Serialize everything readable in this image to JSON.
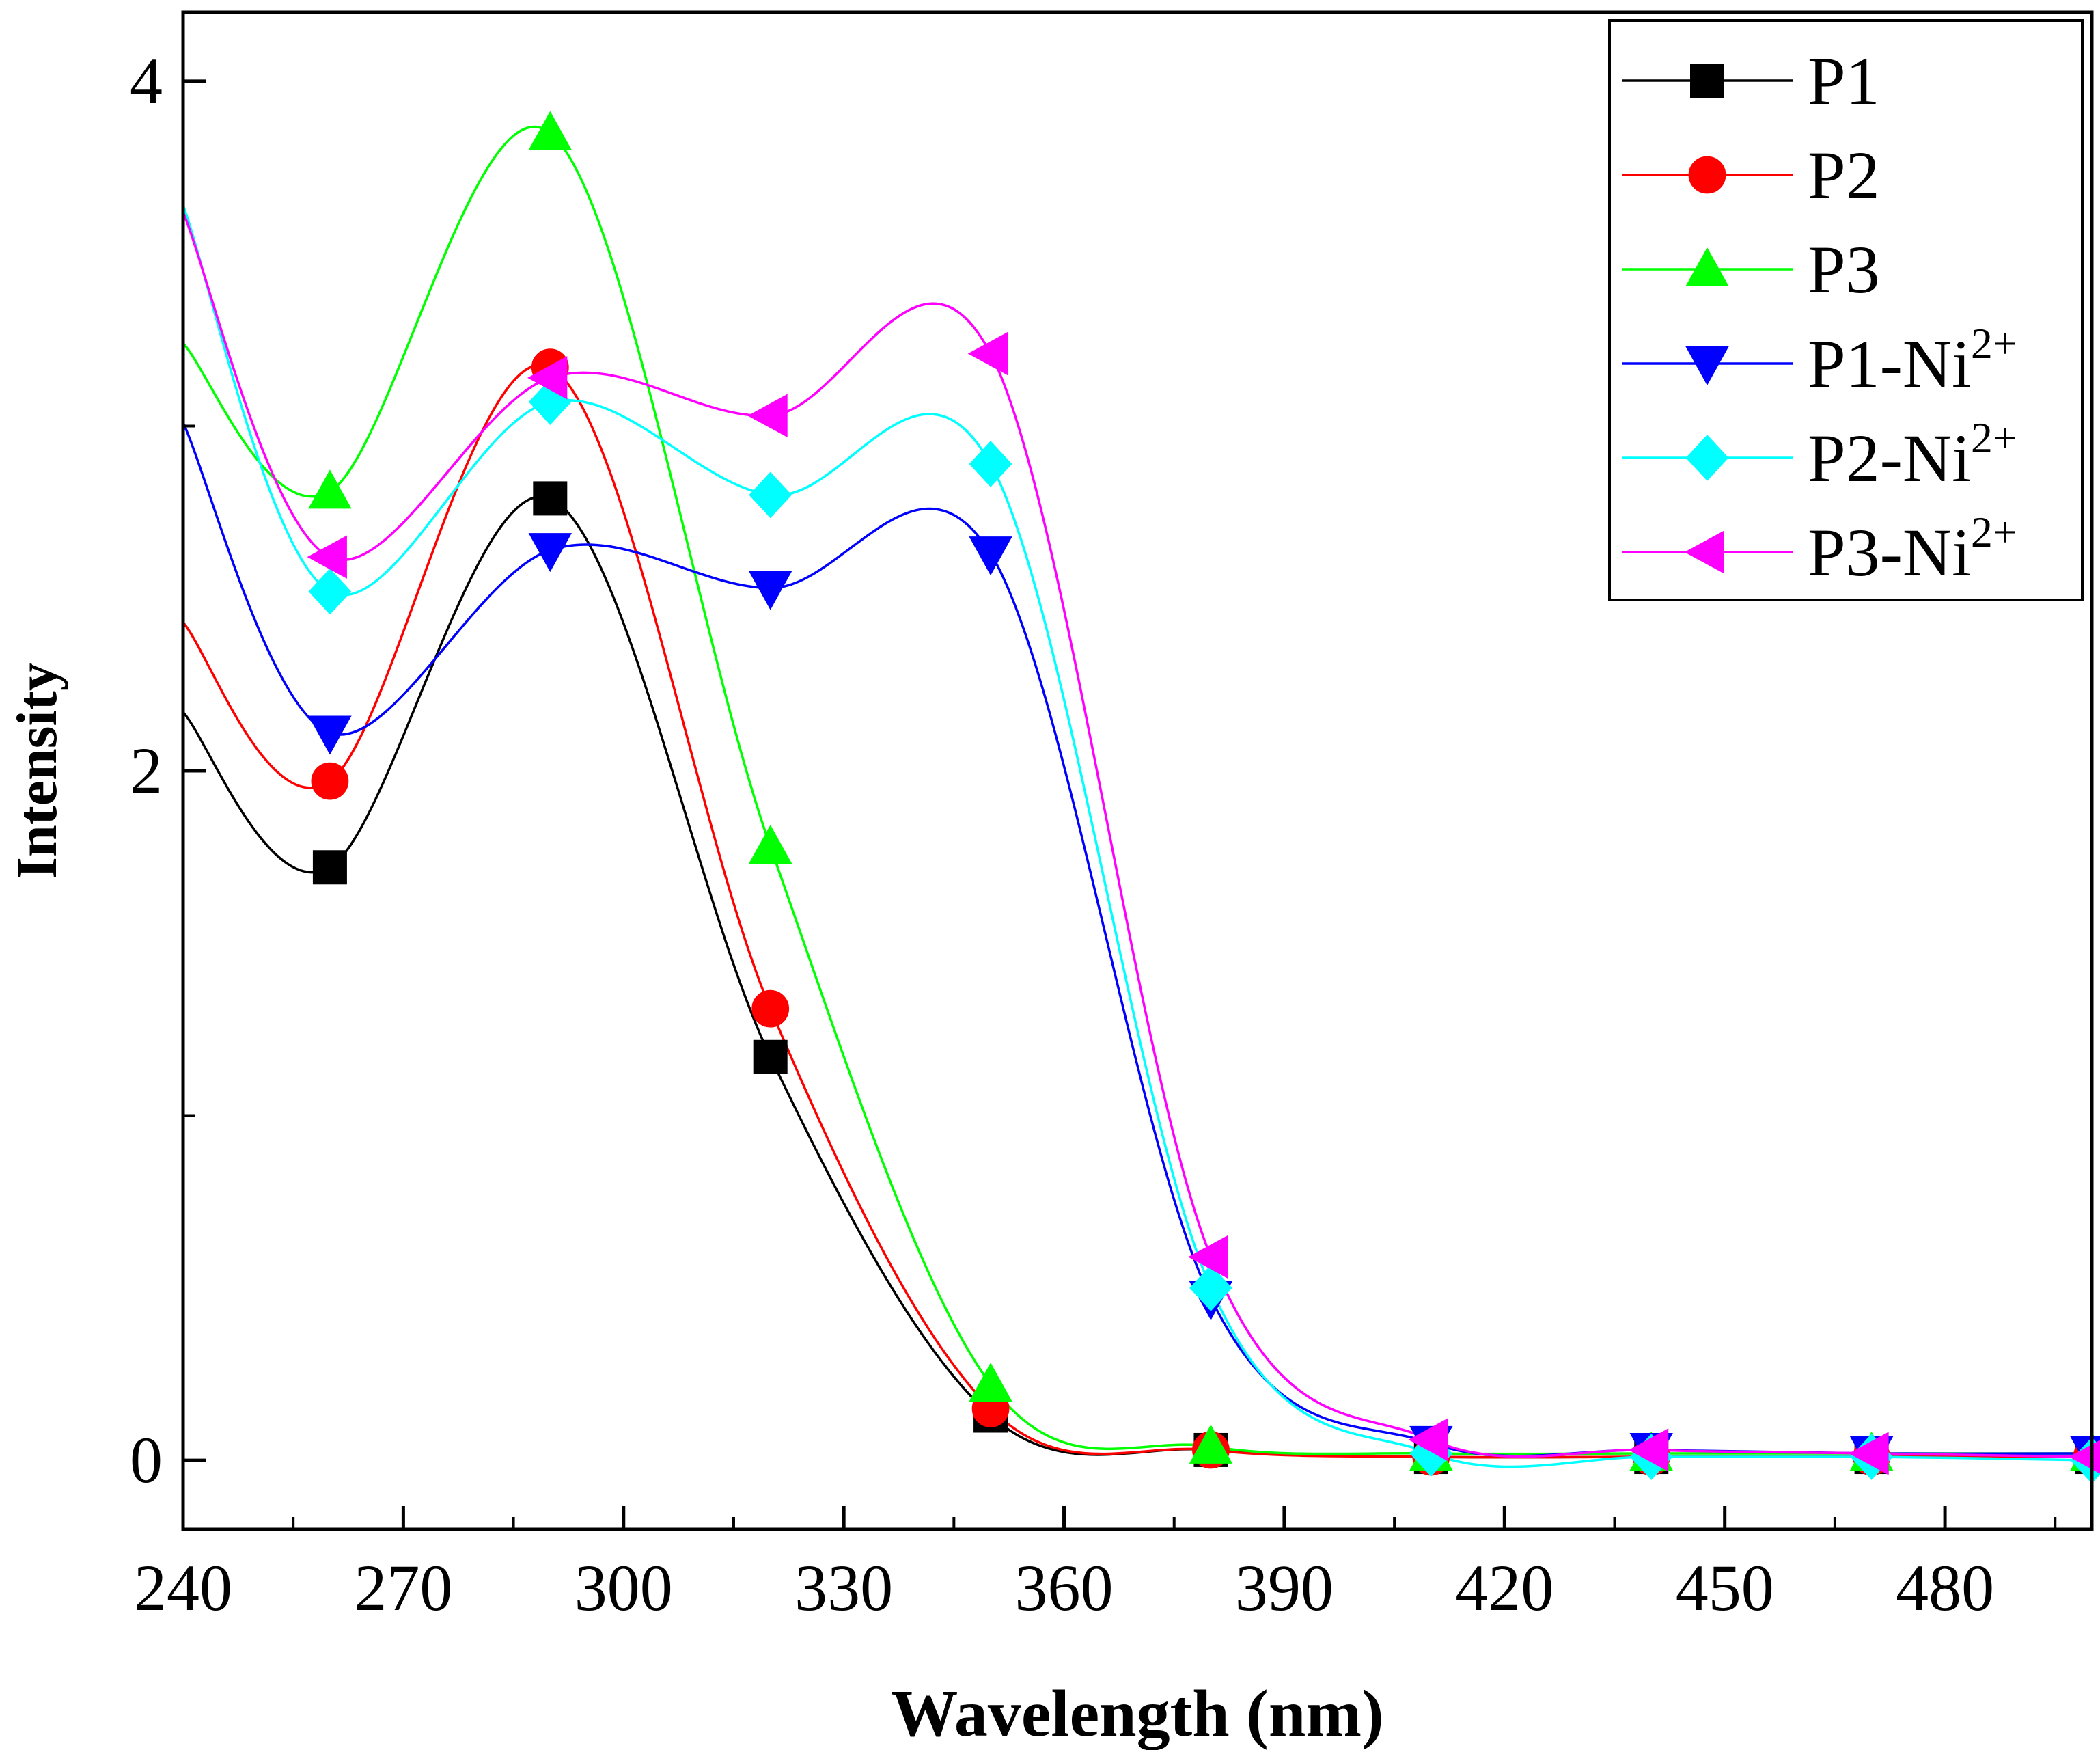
{
  "chart_data": {
    "type": "line",
    "title": "",
    "xlabel": "Wavelength (nm)",
    "ylabel": "Intensity",
    "xlim": [
      240,
      500
    ],
    "ylim": [
      -0.2,
      4.2
    ],
    "xticks": [
      240,
      270,
      300,
      330,
      360,
      390,
      420,
      450,
      480
    ],
    "yticks": [
      0,
      2,
      4
    ],
    "grid": false,
    "legend_position": "top-right",
    "series": [
      {
        "name": "P1",
        "name_base": "P1",
        "name_sup": "",
        "color": "#000000",
        "marker": "square",
        "x": [
          240,
          260,
          290,
          320,
          350,
          380,
          410,
          440,
          470,
          500
        ],
        "y": [
          2.17,
          1.72,
          2.79,
          1.17,
          0.13,
          0.03,
          0.01,
          0.01,
          0.01,
          0.01
        ]
      },
      {
        "name": "P2",
        "name_base": "P2",
        "name_sup": "",
        "color": "#ff0000",
        "marker": "circle",
        "x": [
          240,
          260,
          290,
          320,
          350,
          380,
          410,
          440,
          470,
          500
        ],
        "y": [
          2.43,
          1.97,
          3.17,
          1.31,
          0.15,
          0.03,
          0.01,
          0.01,
          0.01,
          0.01
        ]
      },
      {
        "name": "P3",
        "name_base": "P3",
        "name_sup": "",
        "color": "#00ff00",
        "marker": "triangle-up",
        "x": [
          240,
          260,
          290,
          320,
          350,
          380,
          410,
          440,
          470,
          500
        ],
        "y": [
          3.24,
          2.81,
          3.85,
          1.78,
          0.22,
          0.04,
          0.02,
          0.02,
          0.02,
          0.02
        ]
      },
      {
        "name": "P1-Ni2+",
        "name_base": "P1-Ni",
        "name_sup": "2+",
        "color": "#0000ff",
        "marker": "triangle-down",
        "x": [
          240,
          260,
          290,
          320,
          350,
          380,
          410,
          440,
          470,
          500
        ],
        "y": [
          3.01,
          2.11,
          2.64,
          2.53,
          2.63,
          0.47,
          0.05,
          0.03,
          0.02,
          0.02
        ]
      },
      {
        "name": "P2-Ni2+",
        "name_base": "P2-Ni",
        "name_sup": "2+",
        "color": "#00ffff",
        "marker": "diamond",
        "x": [
          240,
          260,
          290,
          320,
          350,
          380,
          410,
          440,
          470,
          500
        ],
        "y": [
          3.64,
          2.52,
          3.07,
          2.8,
          2.89,
          0.5,
          0.02,
          0.01,
          0.01,
          0.0
        ]
      },
      {
        "name": "P3-Ni2+",
        "name_base": "P3-Ni",
        "name_sup": "2+",
        "color": "#ff00ff",
        "marker": "triangle-left",
        "x": [
          240,
          260,
          290,
          320,
          350,
          380,
          410,
          440,
          470,
          500
        ],
        "y": [
          3.62,
          2.62,
          3.14,
          3.03,
          3.21,
          0.59,
          0.06,
          0.03,
          0.02,
          0.01
        ]
      }
    ]
  }
}
